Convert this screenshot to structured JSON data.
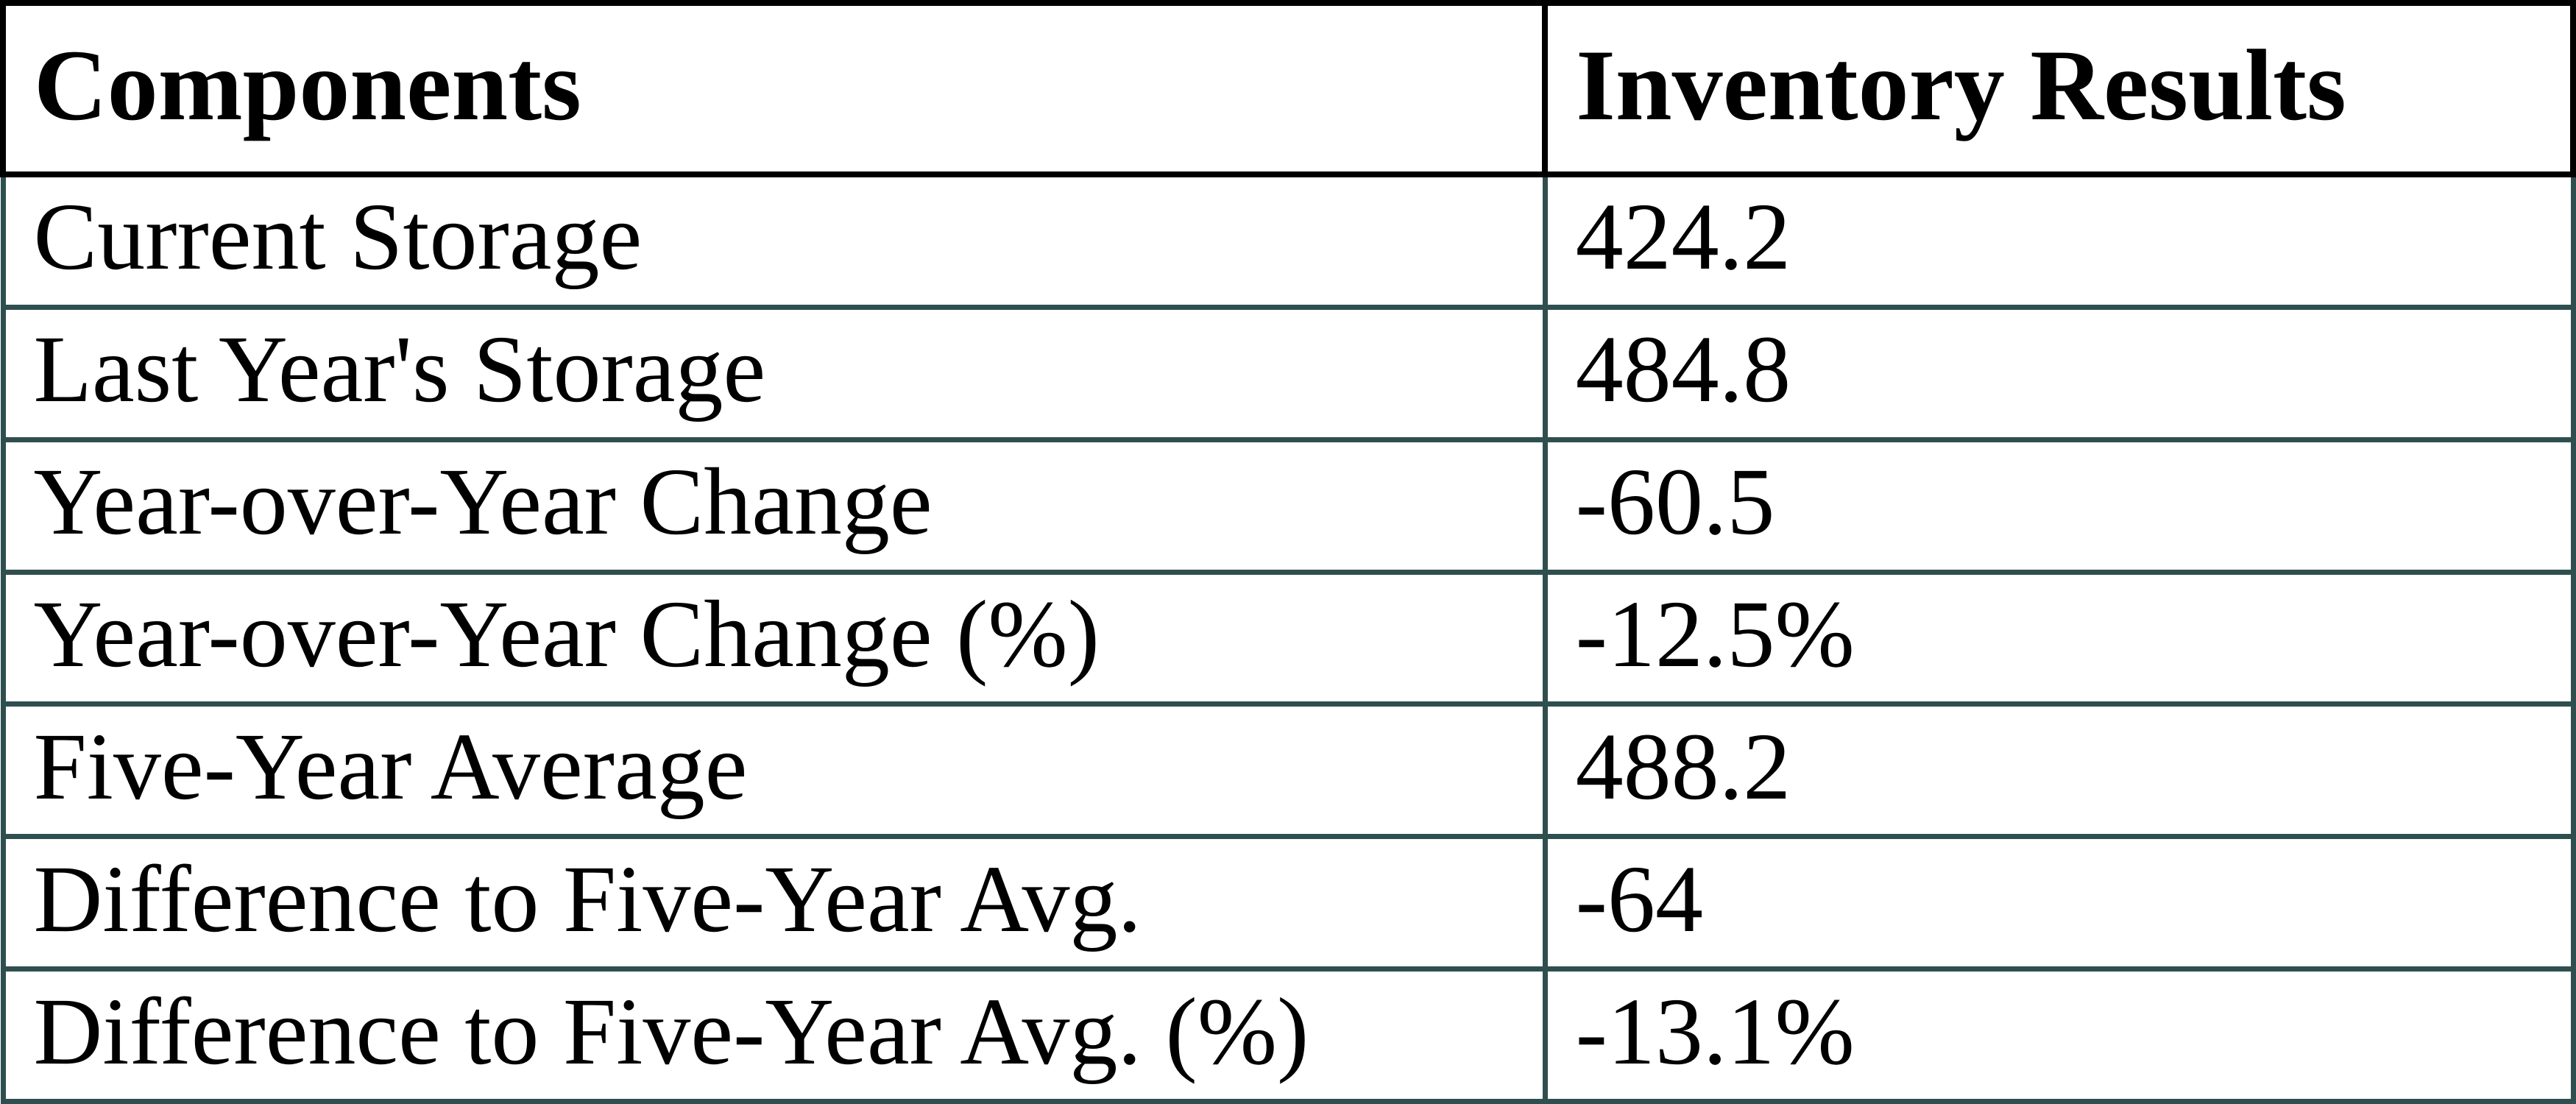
{
  "colors": {
    "background": "#FFFFFF",
    "text": "#000000",
    "header_border": "#000000",
    "body_border": "#2F4F4F"
  },
  "table": {
    "columns": [
      {
        "label": "Components"
      },
      {
        "label": "Inventory Results"
      }
    ],
    "rows": [
      {
        "component": "Current Storage",
        "value": "424.2"
      },
      {
        "component": "Last Year's Storage",
        "value": "484.8"
      },
      {
        "component": "Year-over-Year Change",
        "value": "-60.5"
      },
      {
        "component": "Year-over-Year Change (%)",
        "value": "-12.5%"
      },
      {
        "component": "Five-Year Average",
        "value": "488.2"
      },
      {
        "component": "Difference to Five-Year Avg.",
        "value": "-64"
      },
      {
        "component": "Difference to Five-Year Avg. (%)",
        "value": "-13.1%"
      }
    ]
  },
  "chart_data": {
    "type": "table",
    "title": "",
    "columns": [
      "Components",
      "Inventory Results"
    ],
    "rows": [
      [
        "Current Storage",
        "424.2"
      ],
      [
        "Last Year's Storage",
        "484.8"
      ],
      [
        "Year-over-Year Change",
        "-60.5"
      ],
      [
        "Year-over-Year Change (%)",
        "-12.5%"
      ],
      [
        "Five-Year Average",
        "488.2"
      ],
      [
        "Difference to Five-Year Avg.",
        "-64"
      ],
      [
        "Difference to Five-Year Avg. (%)",
        "-13.1%"
      ]
    ]
  }
}
